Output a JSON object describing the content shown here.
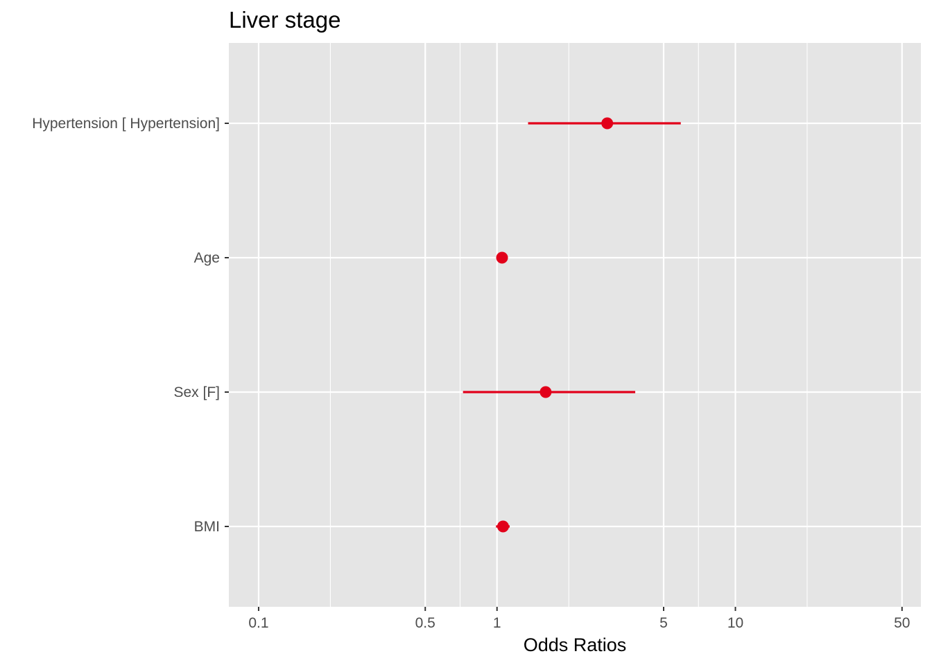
{
  "chart_data": {
    "type": "scatter",
    "title": "Liver stage",
    "xlabel": "Odds Ratios",
    "ylabel": "",
    "x_scale": "log",
    "xlim": [
      0.075,
      60
    ],
    "x_major_ticks": [
      0.1,
      0.5,
      1,
      5,
      10,
      50
    ],
    "x_minor_ticks": [
      0.2,
      0.7,
      2,
      7,
      20
    ],
    "x_tick_labels": [
      "0.1",
      "0.5",
      "1",
      "5",
      "10",
      "50"
    ],
    "categories": [
      "Hypertension [ Hypertension]",
      "Age",
      "Sex [F]",
      "BMI"
    ],
    "series": [
      {
        "estimates": [
          2.9,
          1.05,
          1.6,
          1.06
        ],
        "ci_low": [
          1.35,
          1.05,
          0.72,
          0.99
        ],
        "ci_high": [
          5.9,
          1.05,
          3.8,
          1.13
        ]
      }
    ],
    "grid": true,
    "legend": "none",
    "colors": {
      "point": "#e2001a",
      "panel_background": "#e5e5e5",
      "grid": "#ffffff",
      "tick_label": "#4d4d4d",
      "tick_mark": "#333333"
    }
  }
}
